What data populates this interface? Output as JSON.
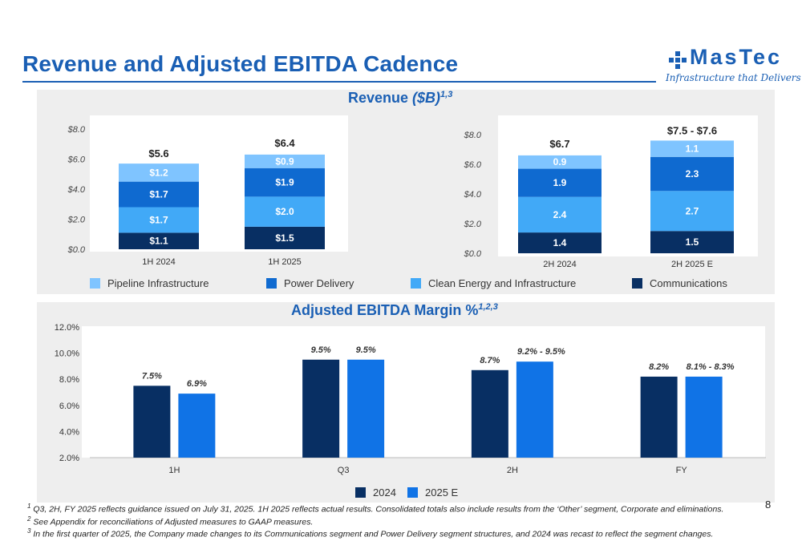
{
  "slide": {
    "title": "Revenue and Adjusted EBITDA Cadence",
    "page_number": "8",
    "logo_text": "MasTec",
    "logo_tagline": "Infrastructure that Delivers"
  },
  "colors": {
    "pipeline": "#7fc4ff",
    "power": "#0f6ad0",
    "clean": "#41a9f7",
    "communications": "#082f63",
    "series_2024": "#082f63",
    "series_2025": "#1073e6",
    "brand_blue": "#1a5fb4"
  },
  "revenue": {
    "title_main": "Revenue ",
    "title_unit": "($B)",
    "title_sup": "1,3",
    "legend": [
      "Pipeline Infrastructure",
      "Power Delivery",
      "Clean Energy and Infrastructure",
      "Communications"
    ]
  },
  "ebitda": {
    "title_main": "Adjusted EBITDA Margin %",
    "title_sup": "1,2,3",
    "legend": [
      "2024",
      "2025 E"
    ]
  },
  "footnotes": [
    {
      "num": "1",
      "text": "Q3, 2H, FY 2025 reflects guidance issued on July 31, 2025. 1H 2025 reflects actual results. Consolidated totals also include results from the ‘Other’ segment, Corporate and eliminations."
    },
    {
      "num": "2",
      "text": "See Appendix for reconciliations of Adjusted measures to GAAP measures."
    },
    {
      "num": "3",
      "text": "In the first quarter of 2025, the Company made changes to its Communications segment and Power Delivery segment structures, and 2024 was recast to reflect the segment changes."
    }
  ],
  "chart_data": [
    {
      "type": "bar",
      "stacked": true,
      "categories": [
        "1H 2024",
        "1H 2025"
      ],
      "ylim": [
        0,
        8
      ],
      "yticks": [
        "$0.0",
        "$2.0",
        "$4.0",
        "$6.0",
        "$8.0"
      ],
      "series": [
        {
          "name": "Communications",
          "values": [
            1.1,
            1.5
          ],
          "labels": [
            "$1.1",
            "$1.5"
          ]
        },
        {
          "name": "Clean Energy and Infrastructure",
          "values": [
            1.7,
            2.0
          ],
          "labels": [
            "$1.7",
            "$2.0"
          ]
        },
        {
          "name": "Power Delivery",
          "values": [
            1.7,
            1.9
          ],
          "labels": [
            "$1.7",
            "$1.9"
          ]
        },
        {
          "name": "Pipeline Infrastructure",
          "values": [
            1.2,
            0.9
          ],
          "labels": [
            "$1.2",
            "$0.9"
          ]
        }
      ],
      "totals": [
        "$5.6",
        "$6.4"
      ],
      "total_values": [
        5.6,
        6.4
      ]
    },
    {
      "type": "bar",
      "stacked": true,
      "categories": [
        "2H 2024",
        "2H 2025 E"
      ],
      "ylim": [
        0,
        8
      ],
      "yticks": [
        "$0.0",
        "$2.0",
        "$4.0",
        "$6.0",
        "$8.0"
      ],
      "series": [
        {
          "name": "Communications",
          "values": [
            1.4,
            1.5
          ],
          "labels": [
            "1.4",
            "1.5"
          ]
        },
        {
          "name": "Clean Energy and Infrastructure",
          "values": [
            2.4,
            2.7
          ],
          "labels": [
            "2.4",
            "2.7"
          ]
        },
        {
          "name": "Power Delivery",
          "values": [
            1.9,
            2.3
          ],
          "labels": [
            "1.9",
            "2.3"
          ]
        },
        {
          "name": "Pipeline Infrastructure",
          "values": [
            0.9,
            1.1
          ],
          "labels": [
            "0.9",
            "1.1"
          ]
        }
      ],
      "totals": [
        "$6.7",
        "$7.5 - $7.6"
      ],
      "total_values": [
        6.7,
        7.55
      ]
    },
    {
      "type": "bar",
      "categories": [
        "1H",
        "Q3",
        "2H",
        "FY"
      ],
      "ylim": [
        2,
        12
      ],
      "yticks": [
        "2.0%",
        "4.0%",
        "6.0%",
        "8.0%",
        "10.0%",
        "12.0%"
      ],
      "series": [
        {
          "name": "2024",
          "values": [
            7.5,
            9.5,
            8.7,
            8.2
          ],
          "labels": [
            "7.5%",
            "9.5%",
            "8.7%",
            "8.2%"
          ]
        },
        {
          "name": "2025 E",
          "values": [
            6.9,
            9.5,
            9.35,
            8.2
          ],
          "labels": [
            "6.9%",
            "9.5%",
            "9.2% - 9.5%",
            "8.1% - 8.3%"
          ]
        }
      ]
    }
  ]
}
